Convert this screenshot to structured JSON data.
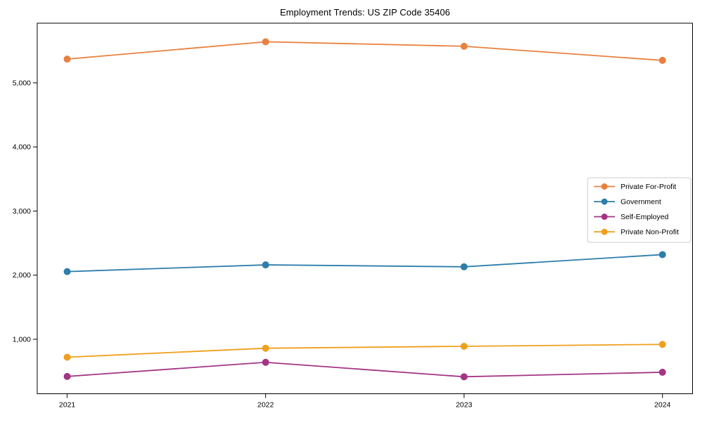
{
  "title": "Employment Trends: US ZIP Code 35406",
  "chart_data": {
    "type": "line",
    "title": "Employment Trends: US ZIP Code 35406",
    "categories": [
      "2021",
      "2022",
      "2023",
      "2024"
    ],
    "series": [
      {
        "name": "Private For-Profit",
        "color": "#e8813f",
        "values": [
          5370,
          5640,
          5570,
          5350
        ]
      },
      {
        "name": "Government",
        "color": "#2e7eab",
        "values": [
          2055,
          2160,
          2130,
          2320
        ]
      },
      {
        "name": "Self-Employed",
        "color": "#a33584",
        "values": [
          420,
          640,
          415,
          485
        ]
      },
      {
        "name": "Private Non-Profit",
        "color": "#efa01e",
        "values": [
          720,
          860,
          890,
          920
        ]
      }
    ],
    "xlabel": "",
    "ylabel": "",
    "ylim": [
      150,
      5930
    ],
    "yticks": [
      1000,
      2000,
      3000,
      4000,
      5000
    ],
    "ytick_labels": [
      "1,000",
      "2,000",
      "3,000",
      "4,000",
      "5,000"
    ],
    "grid": false,
    "legend_position": "center right",
    "marker": "circle"
  },
  "legend": {
    "border_color": "#cccccc",
    "background": "#ffffff"
  },
  "axes": {
    "spine_color": "#000000",
    "tick_color": "#000000"
  }
}
